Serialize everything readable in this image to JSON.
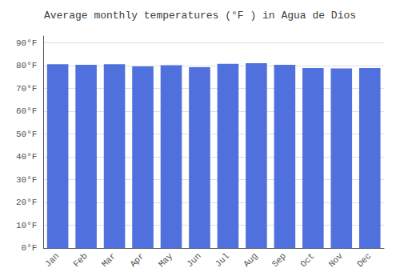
{
  "chart_data": {
    "type": "bar",
    "title": "Average monthly temperatures (°F ) in Agua de Dios",
    "categories": [
      "Jan",
      "Feb",
      "Mar",
      "Apr",
      "May",
      "Jun",
      "Jul",
      "Aug",
      "Sep",
      "Oct",
      "Nov",
      "Dec"
    ],
    "values": [
      80.6,
      80.4,
      80.6,
      79.7,
      80.2,
      79.3,
      80.8,
      81.1,
      80.4,
      79.0,
      78.8,
      79.0
    ],
    "ylim": [
      0,
      93
    ],
    "yticks": [
      {
        "value": 0,
        "label": "0°F"
      },
      {
        "value": 10,
        "label": "10°F"
      },
      {
        "value": 20,
        "label": "20°F"
      },
      {
        "value": 30,
        "label": "30°F"
      },
      {
        "value": 40,
        "label": "40°F"
      },
      {
        "value": 50,
        "label": "50°F"
      },
      {
        "value": 60,
        "label": "60°F"
      },
      {
        "value": 70,
        "label": "70°F"
      },
      {
        "value": 80,
        "label": "80°F"
      },
      {
        "value": 90,
        "label": "90°F"
      }
    ],
    "grid": true
  }
}
